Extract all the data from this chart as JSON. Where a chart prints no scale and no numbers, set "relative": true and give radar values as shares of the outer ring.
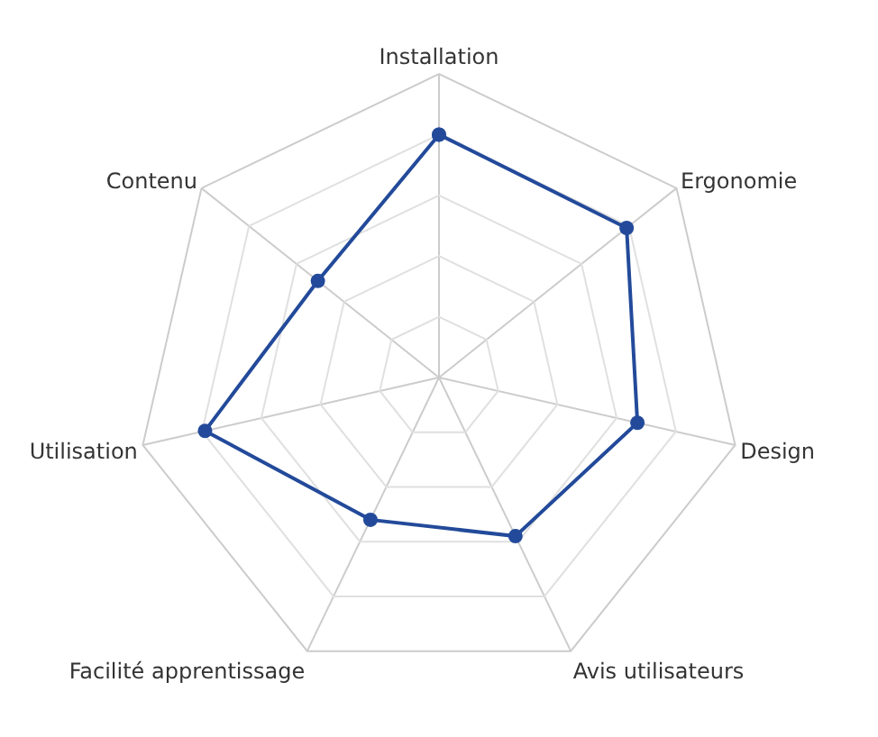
{
  "chart_data": {
    "type": "radar",
    "relative": true,
    "categories": [
      "Installation",
      "Ergonomie",
      "Design",
      "Avis utilisateurs",
      "Facilité apprentissage",
      "Utilisation",
      "Contenu"
    ],
    "series": [
      {
        "color": "#234a9a",
        "values": [
          0.8,
          0.79,
          0.67,
          0.58,
          0.52,
          0.79,
          0.51
        ]
      }
    ],
    "grid": true,
    "marker": "circle",
    "line_style": "solid"
  }
}
